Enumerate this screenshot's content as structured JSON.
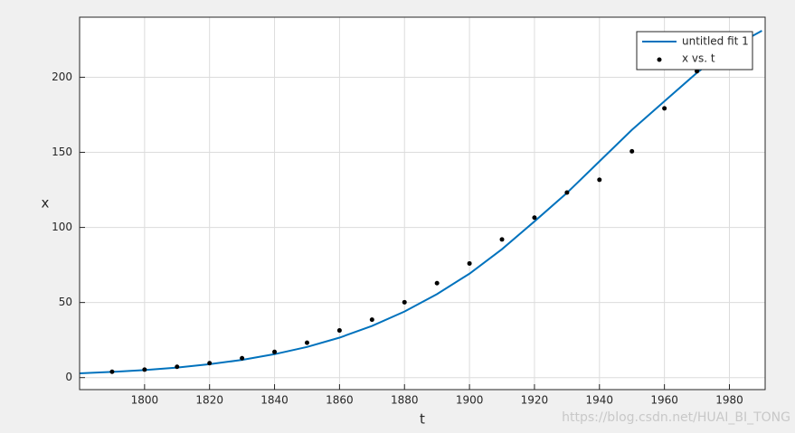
{
  "chart_data": {
    "type": "line",
    "xlabel": "t",
    "ylabel": "x",
    "xlim": [
      1780,
      1991
    ],
    "ylim": [
      -8,
      240
    ],
    "xticks": [
      1800,
      1820,
      1840,
      1860,
      1880,
      1900,
      1920,
      1940,
      1960,
      1980
    ],
    "yticks": [
      0,
      50,
      100,
      150,
      200
    ],
    "grid": true,
    "legend": "upper-right",
    "watermark": "https://blog.csdn.net/HUAI_BI_TONG",
    "series": [
      {
        "name": "untitled fit 1",
        "type": "line",
        "color": "#0072bd",
        "x": [
          1780,
          1790,
          1800,
          1810,
          1820,
          1830,
          1840,
          1850,
          1860,
          1870,
          1880,
          1890,
          1900,
          1910,
          1920,
          1930,
          1940,
          1950,
          1960,
          1970,
          1980,
          1990
        ],
        "values": [
          2.8,
          3.8,
          5.0,
          6.7,
          8.9,
          11.8,
          15.6,
          20.4,
          26.6,
          34.4,
          44.0,
          55.6,
          69.2,
          85.5,
          104,
          123,
          144,
          165,
          184,
          203,
          219,
          231
        ]
      },
      {
        "name": "x vs. t",
        "type": "scatter",
        "color": "#000000",
        "x": [
          1790,
          1800,
          1810,
          1820,
          1830,
          1840,
          1850,
          1860,
          1870,
          1880,
          1890,
          1900,
          1910,
          1920,
          1930,
          1940,
          1950,
          1960,
          1970
        ],
        "values": [
          3.9,
          5.3,
          7.2,
          9.6,
          12.9,
          17.1,
          23.2,
          31.4,
          38.6,
          50.2,
          62.9,
          76.0,
          92.0,
          106.5,
          123.2,
          131.7,
          150.7,
          179.3,
          204.0
        ]
      }
    ]
  }
}
